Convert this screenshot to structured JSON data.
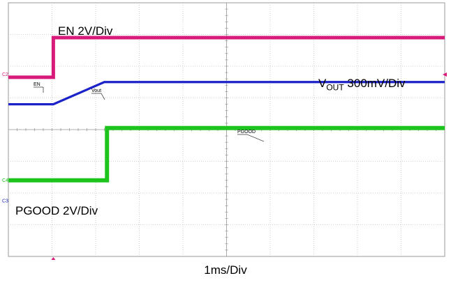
{
  "chart_data": {
    "type": "line",
    "title": "",
    "xlabel": "1ms/Div",
    "ylabel": "",
    "x_unit": "ms",
    "divisions": {
      "x": 10,
      "y": 8
    },
    "grid": true,
    "series": [
      {
        "name": "EN",
        "scale_label": "EN 2V/Div",
        "marker_label": "EN",
        "channel_tag": "C2",
        "color": "#d81b7a",
        "x": [
          0,
          1.03,
          1.03,
          10
        ],
        "y_div": [
          1.65,
          1.65,
          2.9,
          2.9
        ]
      },
      {
        "name": "Vout",
        "scale_label_main": "V",
        "scale_label_sub": "OUT",
        "scale_label_rest": " 300mV/Div",
        "marker_label": "Vout",
        "channel_tag": "",
        "color": "#1a22c8",
        "x": [
          0,
          1.03,
          2.2,
          10
        ],
        "y_div": [
          0.8,
          0.8,
          1.5,
          1.5
        ]
      },
      {
        "name": "PGOOD",
        "scale_label": "PGOOD 2V/Div",
        "marker_label": "PGOOD",
        "channel_tag": "C4",
        "color": "#1ec41e",
        "x": [
          0,
          2.26,
          2.26,
          10
        ],
        "y_div": [
          -1.6,
          -1.6,
          0.05,
          0.05
        ]
      }
    ],
    "extra_channel_tag": "C3",
    "extra_channel_color": "#1a22c8"
  }
}
